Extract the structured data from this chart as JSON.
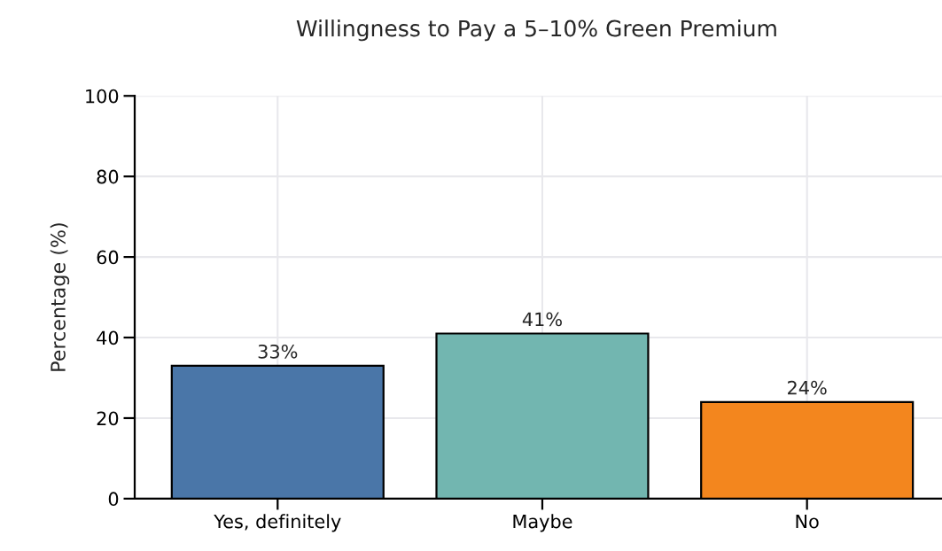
{
  "chart_data": {
    "type": "bar",
    "title": "Willingness to Pay a 5–10% Green Premium",
    "ylabel": "Percentage (%)",
    "categories": [
      "Yes, definitely",
      "Maybe",
      "No"
    ],
    "values": [
      33,
      41,
      24
    ],
    "colors": [
      "#4a76a8",
      "#72b6b0",
      "#f3861e"
    ],
    "value_labels": [
      "33%",
      "41%",
      "24%"
    ],
    "ylim": [
      0,
      100
    ],
    "yticks": [
      0,
      20,
      40,
      60,
      80,
      100
    ],
    "grid": true
  }
}
